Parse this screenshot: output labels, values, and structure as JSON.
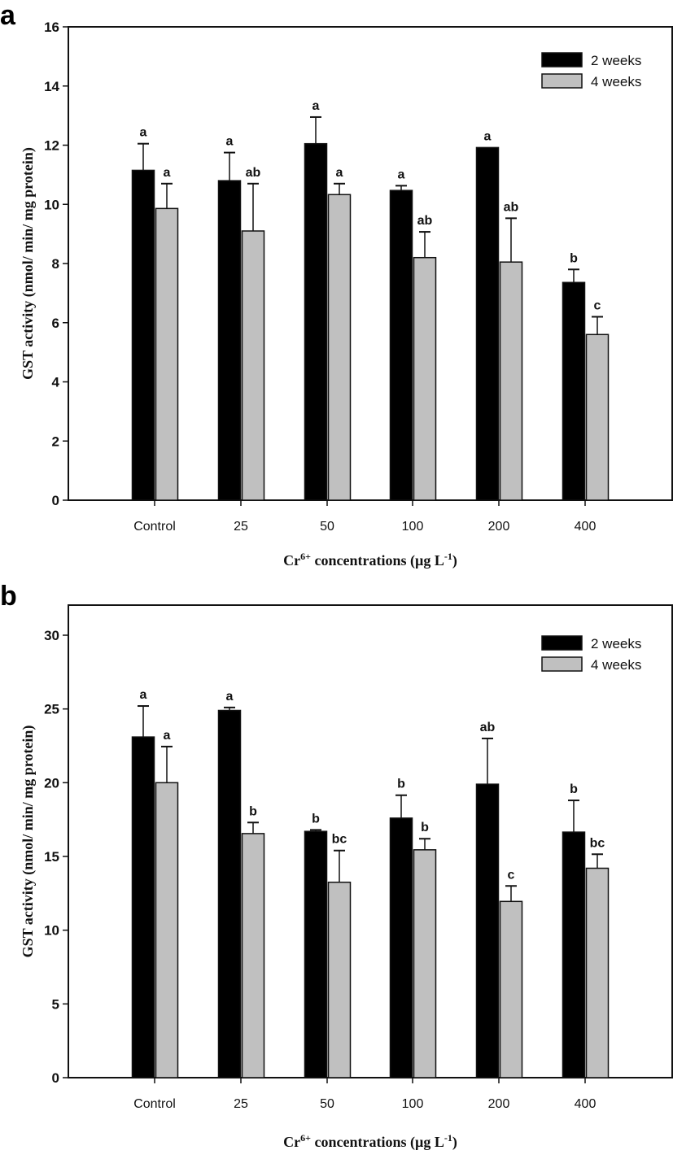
{
  "chart_data": [
    {
      "type": "bar",
      "panel_label": "a",
      "title": "",
      "xlabel": "Cr6+ concentrations (µg L-1)",
      "xlabel_parts": {
        "base": "Cr",
        "sup": "6+",
        "mid": " concentrations (µg L",
        "sup2": "-1",
        "end": ")"
      },
      "ylabel": "GST activity (nmol/ min/ mg protein)",
      "ylim": [
        0,
        16
      ],
      "yticks": [
        0,
        2,
        4,
        6,
        8,
        10,
        12,
        14,
        16
      ],
      "grid": false,
      "legend_position": "top-right",
      "categories": [
        "Control",
        "25",
        "50",
        "100",
        "200",
        "400"
      ],
      "series": [
        {
          "name": "2 weeks",
          "color": "#000000",
          "values": [
            11.15,
            10.8,
            12.05,
            10.47,
            11.92,
            7.36
          ],
          "error": [
            0.9,
            0.95,
            0.9,
            0.16,
            0.0,
            0.44
          ],
          "letters": [
            "a",
            "a",
            "a",
            "a",
            "a",
            "b"
          ]
        },
        {
          "name": "4 weeks",
          "color": "#c0c0c0",
          "values": [
            9.86,
            9.1,
            10.33,
            8.2,
            8.05,
            5.6
          ],
          "error": [
            0.84,
            1.6,
            0.37,
            0.87,
            1.48,
            0.6
          ],
          "letters": [
            "a",
            "ab",
            "a",
            "ab",
            "ab",
            "c"
          ]
        }
      ]
    },
    {
      "type": "bar",
      "panel_label": "b",
      "title": "",
      "xlabel": "Cr6+ concentrations (µg L-1)",
      "xlabel_parts": {
        "base": "Cr",
        "sup": "6+",
        "mid": " concentrations (µg L",
        "sup2": "-1",
        "end": ")"
      },
      "ylabel": "GST activity (nmol/ min/ mg protein)",
      "ylim": [
        0,
        32
      ],
      "yticks": [
        0,
        5,
        10,
        15,
        20,
        25,
        30
      ],
      "grid": false,
      "legend_position": "top-right",
      "categories": [
        "Control",
        "25",
        "50",
        "100",
        "200",
        "400"
      ],
      "series": [
        {
          "name": "2 weeks",
          "color": "#000000",
          "values": [
            23.1,
            24.9,
            16.7,
            17.6,
            19.9,
            16.65
          ],
          "error": [
            2.1,
            0.2,
            0.1,
            1.55,
            3.1,
            2.15
          ],
          "letters": [
            "a",
            "a",
            "b",
            "b",
            "ab",
            "b"
          ]
        },
        {
          "name": "4 weeks",
          "color": "#c0c0c0",
          "values": [
            20.0,
            16.55,
            13.25,
            15.45,
            11.95,
            14.2
          ],
          "error": [
            2.45,
            0.75,
            2.15,
            0.75,
            1.05,
            0.95
          ],
          "letters": [
            "a",
            "b",
            "bc",
            "b",
            "c",
            "bc"
          ]
        }
      ]
    }
  ]
}
